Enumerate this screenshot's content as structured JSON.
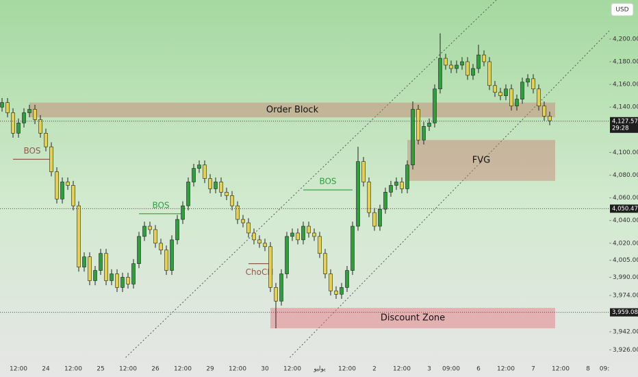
{
  "chart_data": {
    "type": "candlestick",
    "currency": "USD",
    "ylim": [
      3919,
      4234.4
    ],
    "yticks": [
      {
        "value": 4200,
        "label": "4,200.000"
      },
      {
        "value": 4180,
        "label": "4,180.000"
      },
      {
        "value": 4160,
        "label": "4,160.000"
      },
      {
        "value": 4140,
        "label": "4,140.000"
      },
      {
        "value": 4100,
        "label": "4,100.000"
      },
      {
        "value": 4080,
        "label": "4,080.000"
      },
      {
        "value": 4060,
        "label": "4,060.000"
      },
      {
        "value": 4040,
        "label": "4,040.000"
      },
      {
        "value": 4020,
        "label": "4,020.000"
      },
      {
        "value": 4005,
        "label": "4,005.000"
      },
      {
        "value": 3990,
        "label": "3,990.000"
      },
      {
        "value": 3974,
        "label": "3,974.000"
      },
      {
        "value": 3942,
        "label": "3,942.000"
      },
      {
        "value": 3926,
        "label": "3,926.000"
      }
    ],
    "up_color": "#2e9e3e",
    "down_color": "#e6d24a",
    "categories": [
      null,
      null,
      null,
      "12:00",
      null,
      null,
      null,
      null,
      "24",
      null,
      null,
      null,
      null,
      "12:00",
      null,
      null,
      null,
      null,
      "25",
      null,
      null,
      null,
      null,
      "12:00",
      null,
      null,
      null,
      null,
      "26",
      null,
      null,
      null,
      null,
      "12:00",
      null,
      null,
      null,
      null,
      "29",
      null,
      null,
      null,
      null,
      "12:00",
      null,
      null,
      null,
      null,
      "30",
      null,
      null,
      null,
      null,
      "12:00",
      null,
      null,
      null,
      null,
      "يوليو",
      null,
      null,
      null,
      null,
      "12:00",
      null,
      null,
      null,
      null,
      "2",
      null,
      null,
      null,
      null,
      "12:00",
      null,
      null,
      null,
      null,
      "3",
      null,
      null,
      null,
      "09:00",
      null,
      null,
      null,
      null,
      "6",
      null,
      null,
      null,
      null,
      "12:00",
      null,
      null,
      null,
      null,
      "7",
      null,
      null,
      null,
      null,
      "12:00",
      null,
      null,
      null,
      null,
      "8",
      null,
      null,
      "09:"
    ],
    "candles": [
      [
        4140,
        4148,
        4136,
        4144
      ],
      [
        4144,
        4148,
        4131,
        4135
      ],
      [
        4135,
        4139,
        4113,
        4117
      ],
      [
        4117,
        4130,
        4113,
        4126
      ],
      [
        4126,
        4139,
        4122,
        4135
      ],
      [
        4135,
        4142,
        4131,
        4138
      ],
      [
        4138,
        4142,
        4125,
        4129
      ],
      [
        4129,
        4133,
        4113,
        4117
      ],
      [
        4117,
        4121,
        4101,
        4105
      ],
      [
        4105,
        4109,
        4079,
        4083
      ],
      [
        4083,
        4087,
        4055,
        4059
      ],
      [
        4059,
        4078,
        4055,
        4074
      ],
      [
        4074,
        4078,
        4067,
        4071
      ],
      [
        4071,
        4075,
        4049,
        4053
      ],
      [
        4053,
        4057,
        3995,
        3999
      ],
      [
        3999,
        4012,
        3995,
        4008
      ],
      [
        4008,
        4012,
        3983,
        3987
      ],
      [
        3987,
        4000,
        3983,
        3996
      ],
      [
        3996,
        4015,
        3992,
        4011
      ],
      [
        4011,
        4015,
        3983,
        3987
      ],
      [
        3987,
        3997,
        3983,
        3993
      ],
      [
        3993,
        3997,
        3977,
        3981
      ],
      [
        3981,
        3994,
        3977,
        3990
      ],
      [
        3990,
        3994,
        3980,
        3984
      ],
      [
        3984,
        4006,
        3980,
        4002
      ],
      [
        4002,
        4030,
        3998,
        4026
      ],
      [
        4026,
        4039,
        4022,
        4035
      ],
      [
        4035,
        4039,
        4028,
        4032
      ],
      [
        4032,
        4036,
        4016,
        4020
      ],
      [
        4020,
        4024,
        4010,
        4014
      ],
      [
        4014,
        4018,
        3992,
        3996
      ],
      [
        3996,
        4027,
        3992,
        4023
      ],
      [
        4023,
        4045,
        4019,
        4041
      ],
      [
        4041,
        4057,
        4037,
        4053
      ],
      [
        4053,
        4078,
        4049,
        4074
      ],
      [
        4074,
        4090,
        4070,
        4086
      ],
      [
        4086,
        4093,
        4082,
        4089
      ],
      [
        4089,
        4093,
        4073,
        4077
      ],
      [
        4077,
        4081,
        4064,
        4068
      ],
      [
        4068,
        4078,
        4064,
        4074
      ],
      [
        4074,
        4078,
        4061,
        4065
      ],
      [
        4065,
        4069,
        4058,
        4062
      ],
      [
        4062,
        4066,
        4049,
        4053
      ],
      [
        4053,
        4057,
        4037,
        4041
      ],
      [
        4041,
        4045,
        4034,
        4038
      ],
      [
        4038,
        4042,
        4025,
        4029
      ],
      [
        4029,
        4033,
        4019,
        4023
      ],
      [
        4023,
        4027,
        4016,
        4020
      ],
      [
        4020,
        4024,
        4013,
        4017
      ],
      [
        4017,
        4021,
        3977,
        3981
      ],
      [
        3981,
        3985,
        3945,
        3969
      ],
      [
        3969,
        3997,
        3965,
        3993
      ],
      [
        3993,
        4030,
        3989,
        4026
      ],
      [
        4026,
        4033,
        4022,
        4029
      ],
      [
        4029,
        4033,
        4019,
        4023
      ],
      [
        4023,
        4039,
        4019,
        4035
      ],
      [
        4035,
        4039,
        4025,
        4029
      ],
      [
        4029,
        4033,
        4022,
        4026
      ],
      [
        4026,
        4030,
        4007,
        4011
      ],
      [
        4011,
        4015,
        3989,
        3993
      ],
      [
        3993,
        3997,
        3974,
        3978
      ],
      [
        3978,
        3982,
        3971,
        3975
      ],
      [
        3975,
        3985,
        3971,
        3981
      ],
      [
        3981,
        4000,
        3977,
        3996
      ],
      [
        3996,
        4039,
        3992,
        4035
      ],
      [
        4035,
        4105,
        4031,
        4092
      ],
      [
        4092,
        4096,
        4070,
        4074
      ],
      [
        4074,
        4078,
        4043,
        4047
      ],
      [
        4047,
        4051,
        4031,
        4035
      ],
      [
        4035,
        4054,
        4031,
        4050
      ],
      [
        4050,
        4069,
        4046,
        4065
      ],
      [
        4065,
        4075,
        4061,
        4071
      ],
      [
        4071,
        4078,
        4067,
        4074
      ],
      [
        4074,
        4078,
        4064,
        4068
      ],
      [
        4068,
        4093,
        4064,
        4089
      ],
      [
        4089,
        4145,
        4085,
        4138
      ],
      [
        4138,
        4142,
        4107,
        4111
      ],
      [
        4111,
        4127,
        4107,
        4123
      ],
      [
        4123,
        4130,
        4119,
        4126
      ],
      [
        4126,
        4160,
        4122,
        4156
      ],
      [
        4156,
        4205,
        4152,
        4183
      ],
      [
        4183,
        4187,
        4173,
        4177
      ],
      [
        4177,
        4181,
        4170,
        4174
      ],
      [
        4174,
        4181,
        4170,
        4177
      ],
      [
        4177,
        4184,
        4173,
        4180
      ],
      [
        4180,
        4184,
        4164,
        4168
      ],
      [
        4168,
        4178,
        4164,
        4174
      ],
      [
        4174,
        4195,
        4170,
        4186
      ],
      [
        4186,
        4190,
        4176,
        4180
      ],
      [
        4180,
        4184,
        4155,
        4159
      ],
      [
        4159,
        4163,
        4149,
        4153
      ],
      [
        4153,
        4157,
        4146,
        4150
      ],
      [
        4150,
        4160,
        4146,
        4156
      ],
      [
        4156,
        4160,
        4137,
        4141
      ],
      [
        4141,
        4151,
        4137,
        4147
      ],
      [
        4147,
        4166,
        4143,
        4162
      ],
      [
        4162,
        4169,
        4158,
        4165
      ],
      [
        4165,
        4169,
        4152,
        4156
      ],
      [
        4156,
        4160,
        4137,
        4141
      ],
      [
        4141,
        4145,
        4128,
        4132
      ],
      [
        4132,
        4136,
        4124,
        4128
      ],
      null,
      null,
      null,
      null,
      null,
      null,
      null,
      null,
      null,
      null
    ],
    "zones": [
      {
        "label": "Order Block",
        "top": 4144,
        "bottom": 4131,
        "from": 5,
        "to": 101,
        "color": "rgba(200,120,105,0.42)"
      },
      {
        "label": "FVG",
        "top": 4111,
        "bottom": 4075,
        "from": 74,
        "to": 101,
        "color": "rgba(200,120,105,0.42)"
      },
      {
        "label": "Discount Zone",
        "top": 3963,
        "bottom": 3945,
        "from": 49,
        "to": 101,
        "color": "rgba(232,110,125,0.45)"
      }
    ],
    "structures": [
      {
        "label": "BOS",
        "price": 4094,
        "from": 2,
        "to": 9,
        "color": "#8d5a4a",
        "side": "above"
      },
      {
        "label": "BOS",
        "price": 4046,
        "from": 25,
        "to": 33,
        "color": "#2e9e3e",
        "side": "above"
      },
      {
        "label": "BOS",
        "price": 4067,
        "from": 55,
        "to": 64,
        "color": "#2e9e3e",
        "side": "above"
      },
      {
        "label": "ChoCH",
        "price": 4002,
        "from": 45,
        "to": 49,
        "color": "#8d5a4a",
        "side": "below"
      }
    ],
    "price_labels": [
      {
        "value": 4127.57,
        "label": "4,127.570",
        "countdown": "29:28"
      },
      {
        "value": 4050.47,
        "label": "4,050.470"
      },
      {
        "value": 3959.08,
        "label": "3,959.080"
      }
    ]
  }
}
